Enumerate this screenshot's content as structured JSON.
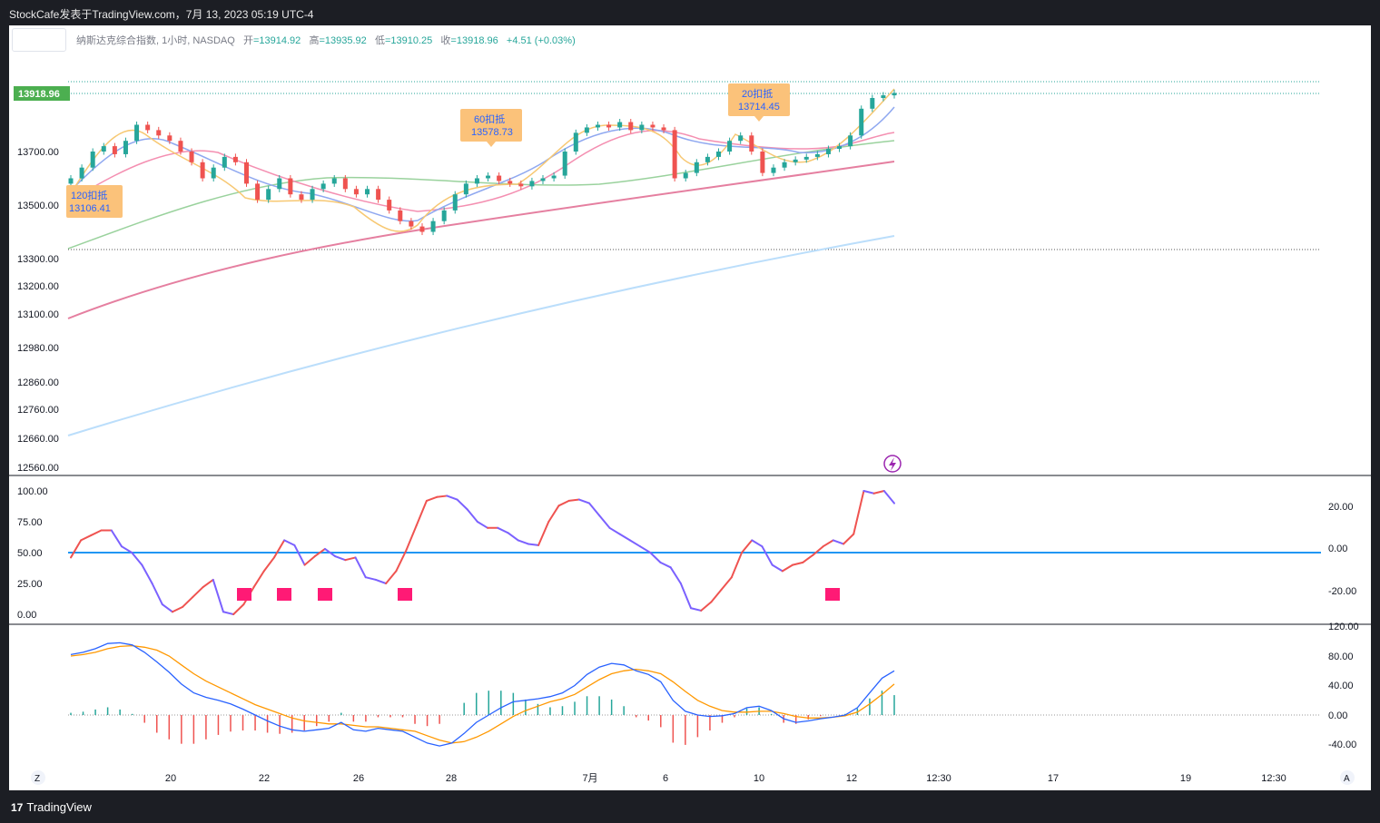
{
  "header": {
    "title": "StockCafe发表于TradingView.com，7月 13, 2023 05:19 UTC-4"
  },
  "legend": {
    "symbol": "纳斯达克综合指数, 1小时, NASDAQ",
    "open_label": "开",
    "open": "=13914.92",
    "high_label": "高",
    "high": "=13935.92",
    "low_label": "低",
    "low": "=13910.25",
    "close_label": "收",
    "close": "=13918.96",
    "change": "+4.51 (+0.03%)"
  },
  "footer": {
    "brand": "TradingView",
    "left_button": "Z",
    "right_button": "A"
  },
  "colors": {
    "up": "#26a69a",
    "down": "#ef5350",
    "rsi_up": "#ef5350",
    "rsi_down": "#7b61ff",
    "rsi_mid": "#2196f3",
    "macd": "#2962ff",
    "signal": "#ff9800",
    "marker": "#ff1a75"
  },
  "chart_data": [
    {
      "type": "candlestick",
      "last_price_label": "13918.96",
      "y_ticks": [
        "13700.00",
        "13500.00",
        "13300.00",
        "13200.00",
        "13100.00",
        "12980.00",
        "12860.00",
        "12760.00",
        "12660.00",
        "12560.00"
      ],
      "x_ticks": [
        "20",
        "22",
        "26",
        "28",
        "7月",
        "6",
        "10",
        "12",
        "12:30",
        "17",
        "19",
        "12:30"
      ],
      "annotations": [
        {
          "label": "120扣抵",
          "value": "13106.41"
        },
        {
          "label": "60扣抵",
          "value": "13578.73"
        },
        {
          "label": "20扣抵",
          "value": "13714.45"
        }
      ],
      "close_series": [
        13600,
        13640,
        13700,
        13720,
        13690,
        13740,
        13800,
        13780,
        13760,
        13740,
        13700,
        13660,
        13600,
        13640,
        13680,
        13660,
        13580,
        13520,
        13560,
        13600,
        13540,
        13520,
        13560,
        13580,
        13600,
        13560,
        13540,
        13560,
        13520,
        13480,
        13440,
        13420,
        13400,
        13440,
        13480,
        13540,
        13580,
        13600,
        13610,
        13590,
        13580,
        13570,
        13590,
        13600,
        13610,
        13700,
        13770,
        13790,
        13800,
        13790,
        13810,
        13780,
        13800,
        13790,
        13780,
        13600,
        13620,
        13660,
        13680,
        13700,
        13740,
        13760,
        13700,
        13620,
        13640,
        13660,
        13670,
        13680,
        13690,
        13710,
        13720,
        13760,
        13860,
        13900,
        13910,
        13919
      ]
    },
    {
      "type": "line",
      "name": "",
      "y_ticks_left": [
        "100.00",
        "75.00",
        "50.00",
        "25.00",
        "0.00"
      ],
      "y_ticks_right": [
        "20.00",
        "0.00",
        "-20.00"
      ],
      "mid_level": 50,
      "values": [
        46,
        60,
        64,
        68,
        68,
        55,
        50,
        40,
        25,
        8,
        2,
        6,
        14,
        22,
        28,
        2,
        0,
        8,
        22,
        35,
        46,
        60,
        56,
        40,
        47,
        53,
        47,
        44,
        46,
        30,
        28,
        25,
        35,
        52,
        72,
        92,
        95,
        96,
        93,
        85,
        75,
        70,
        70,
        66,
        60,
        57,
        56,
        75,
        88,
        92,
        93,
        90,
        80,
        70,
        65,
        60,
        55,
        50,
        42,
        38,
        25,
        5,
        3,
        10,
        20,
        30,
        50,
        60,
        55,
        40,
        35,
        40,
        42,
        48,
        55,
        60,
        57,
        65,
        100,
        98,
        100,
        90
      ]
    },
    {
      "type": "line",
      "name": "",
      "y_ticks": [
        "120.00",
        "80.00",
        "40.00",
        "0.00",
        "-40.00"
      ],
      "macd": [
        82,
        85,
        90,
        97,
        98,
        95,
        85,
        72,
        58,
        42,
        30,
        24,
        20,
        15,
        8,
        0,
        -8,
        -15,
        -20,
        -22,
        -20,
        -18,
        -10,
        -20,
        -22,
        -18,
        -20,
        -22,
        -30,
        -38,
        -42,
        -38,
        -25,
        -10,
        0,
        10,
        18,
        20,
        22,
        25,
        30,
        40,
        55,
        65,
        70,
        68,
        60,
        55,
        45,
        20,
        5,
        0,
        -2,
        -1,
        2,
        10,
        12,
        6,
        -5,
        -10,
        -8,
        -5,
        -3,
        0,
        10,
        30,
        50,
        60
      ],
      "signal": [
        80,
        82,
        85,
        90,
        93,
        94,
        92,
        88,
        80,
        68,
        56,
        46,
        38,
        30,
        22,
        14,
        8,
        2,
        -4,
        -8,
        -10,
        -12,
        -12,
        -14,
        -16,
        -16,
        -18,
        -20,
        -22,
        -28,
        -34,
        -38,
        -36,
        -30,
        -22,
        -12,
        -2,
        6,
        12,
        18,
        22,
        28,
        38,
        48,
        56,
        60,
        62,
        60,
        56,
        45,
        32,
        20,
        12,
        6,
        4,
        4,
        5,
        5,
        2,
        -2,
        -4,
        -4,
        -3,
        -1,
        4,
        15,
        28,
        42
      ]
    }
  ]
}
